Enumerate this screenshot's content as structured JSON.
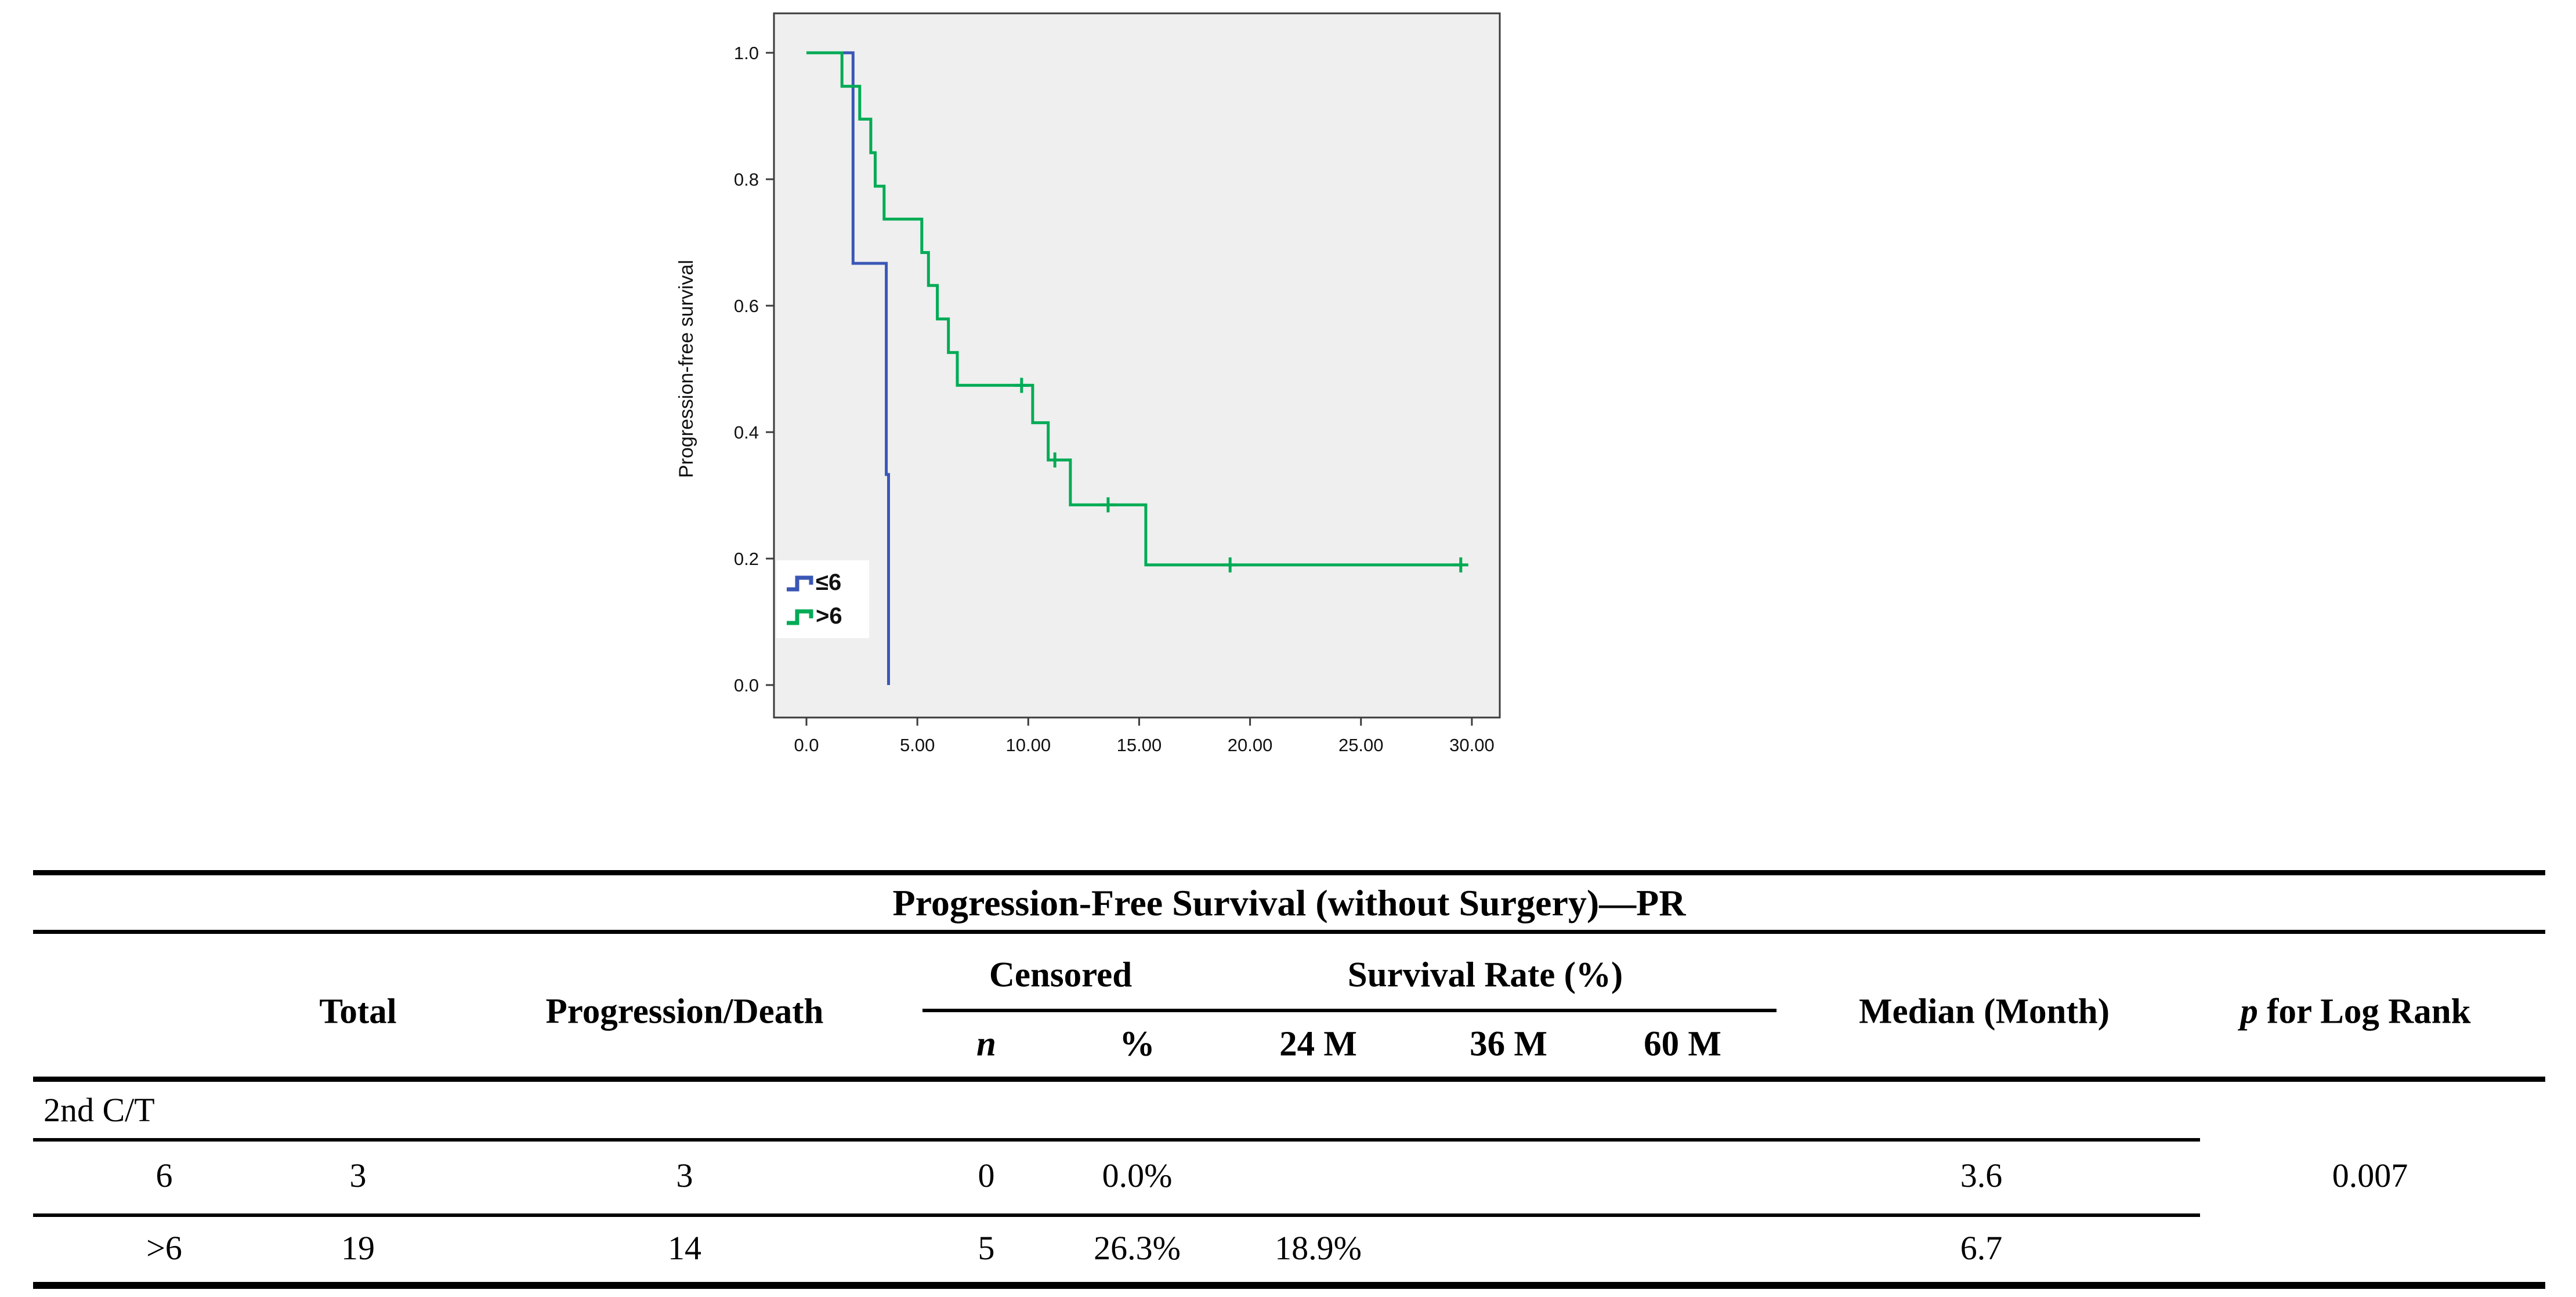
{
  "table": {
    "title": "Progression-Free Survival (without Surgery)—PR",
    "col_headers": {
      "total": "Total",
      "prog_death": "Progression/Death",
      "censored": "Censored",
      "n": "n",
      "pct": "%",
      "survival_rate": "Survival Rate (%)",
      "m24": "24 M",
      "m36": "36 M",
      "m60": "60 M",
      "median": "Median (Month)",
      "p_italic": "p",
      "p_rest": " for Log Rank"
    },
    "group_label": "2nd C/T",
    "rows": [
      {
        "label": "6",
        "total": "3",
        "prog_death": "3",
        "cens_n": "0",
        "cens_pct": "0.0%",
        "m24": "",
        "m36": "",
        "m60": "",
        "median": "3.6"
      },
      {
        "label": ">6",
        "total": "19",
        "prog_death": "14",
        "cens_n": "5",
        "cens_pct": "26.3%",
        "m24": "18.9%",
        "m36": "",
        "m60": "",
        "median": "6.7"
      }
    ],
    "p_value": "0.007"
  },
  "chart_data": {
    "type": "line",
    "subtype": "kaplan-meier-step",
    "title": "",
    "xlabel": "",
    "ylabel": "Progression-free survival",
    "xlim": [
      0,
      31.5
    ],
    "ylim": [
      0,
      1.05
    ],
    "grid": false,
    "legend_position": "lower-left-inside",
    "plot_background": "#efefef",
    "x_ticks": [
      {
        "v": 0,
        "label": "0.0"
      },
      {
        "v": 5,
        "label": "5.00"
      },
      {
        "v": 10,
        "label": "10.00"
      },
      {
        "v": 15,
        "label": "15.00"
      },
      {
        "v": 20,
        "label": "20.00"
      },
      {
        "v": 25,
        "label": "25.00"
      },
      {
        "v": 30,
        "label": "30.00"
      }
    ],
    "y_ticks": [
      {
        "v": 0.0,
        "label": "0.0"
      },
      {
        "v": 0.2,
        "label": "0.2"
      },
      {
        "v": 0.4,
        "label": "0.4"
      },
      {
        "v": 0.6,
        "label": "0.6"
      },
      {
        "v": 0.8,
        "label": "0.8"
      },
      {
        "v": 1.0,
        "label": "1.0"
      }
    ],
    "series": [
      {
        "name": "≤6",
        "color": "#3a57b6",
        "steps": [
          [
            0,
            1.0
          ],
          [
            2.1,
            1.0
          ],
          [
            2.1,
            0.667
          ],
          [
            3.6,
            0.667
          ],
          [
            3.6,
            0.333
          ],
          [
            3.7,
            0.333
          ],
          [
            3.7,
            0.0
          ]
        ],
        "censors": []
      },
      {
        "name": ">6",
        "color": "#00ab55",
        "steps": [
          [
            0,
            1.0
          ],
          [
            1.6,
            1.0
          ],
          [
            1.6,
            0.947
          ],
          [
            2.4,
            0.947
          ],
          [
            2.4,
            0.895
          ],
          [
            2.9,
            0.895
          ],
          [
            2.9,
            0.842
          ],
          [
            3.1,
            0.842
          ],
          [
            3.1,
            0.789
          ],
          [
            3.5,
            0.789
          ],
          [
            3.5,
            0.737
          ],
          [
            5.2,
            0.737
          ],
          [
            5.2,
            0.684
          ],
          [
            5.5,
            0.684
          ],
          [
            5.5,
            0.632
          ],
          [
            5.9,
            0.632
          ],
          [
            5.9,
            0.579
          ],
          [
            6.4,
            0.579
          ],
          [
            6.4,
            0.526
          ],
          [
            6.8,
            0.526
          ],
          [
            6.8,
            0.474
          ],
          [
            10.2,
            0.474
          ],
          [
            10.2,
            0.415
          ],
          [
            10.9,
            0.415
          ],
          [
            10.9,
            0.356
          ],
          [
            11.9,
            0.356
          ],
          [
            11.9,
            0.285
          ],
          [
            15.3,
            0.285
          ],
          [
            15.3,
            0.19
          ],
          [
            29.6,
            0.19
          ]
        ],
        "censors": [
          [
            9.7,
            0.474
          ],
          [
            11.2,
            0.356
          ],
          [
            13.6,
            0.285
          ],
          [
            19.1,
            0.19
          ],
          [
            29.5,
            0.19
          ]
        ]
      }
    ]
  }
}
